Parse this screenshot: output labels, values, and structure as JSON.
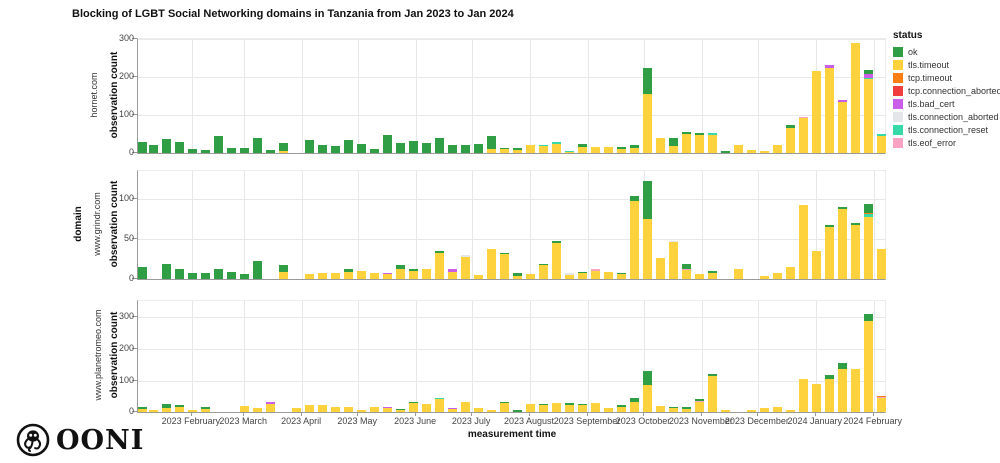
{
  "title": "Blocking of LGBT Social Networking domains in Tanzania from Jan 2023 to Jan 2024",
  "logo": {
    "text": "OONI"
  },
  "axes": {
    "y_label": "observation count",
    "x_label": "measurement time",
    "facet_label": "domain"
  },
  "legend": {
    "title": "status",
    "items": [
      {
        "key": "ok",
        "label": "ok",
        "color": "#2f9e44"
      },
      {
        "key": "tt",
        "label": "tls.timeout",
        "color": "#fdd23c"
      },
      {
        "key": "tcpt",
        "label": "tcp.timeout",
        "color": "#fd7e14"
      },
      {
        "key": "tca",
        "label": "tcp.connection_aborted",
        "color": "#f03e3e"
      },
      {
        "key": "bc",
        "label": "tls.bad_cert",
        "color": "#cc5de8"
      },
      {
        "key": "tlsca",
        "label": "tls.connection_aborted",
        "color": "#e4e7ea"
      },
      {
        "key": "cr",
        "label": "tls.connection_reset",
        "color": "#38d9a9"
      },
      {
        "key": "eof",
        "label": "tls.eof_error",
        "color": "#faa2c1"
      }
    ]
  },
  "x_axis": {
    "label": "measurement time",
    "unit": "weekly bins, week index 0 = 2023-01-01",
    "ticks": [
      "2023 February",
      "2023 March",
      "2023 April",
      "2023 May",
      "2023 June",
      "2023 July",
      "2023 August",
      "2023 September",
      "2023 October",
      "2023 November",
      "2023 December",
      "2024 January",
      "2024 February"
    ]
  },
  "segment_keys": {
    "ok": "ok",
    "tt": "tls.timeout",
    "tcpt": "tcp.timeout",
    "tca": "tcp.connection_aborted",
    "bc": "tls.bad_cert",
    "tlsca": "tls.connection_aborted",
    "cr": "tls.connection_reset",
    "eof": "tls.eof_error"
  },
  "chart_data": [
    {
      "type": "bar",
      "stacked": true,
      "domain": "hornet.com",
      "ylabel": "observation count",
      "ylim": [
        0,
        300
      ],
      "yticks": [
        0,
        100,
        200,
        300
      ],
      "bars": [
        [
          0,
          {
            "ok": 28
          }
        ],
        [
          1,
          {
            "ok": 22
          }
        ],
        [
          2,
          {
            "ok": 37
          }
        ],
        [
          3,
          {
            "ok": 28
          }
        ],
        [
          4,
          {
            "ok": 11
          }
        ],
        [
          5,
          {
            "ok": 8
          }
        ],
        [
          6,
          {
            "ok": 45
          }
        ],
        [
          7,
          {
            "ok": 12
          }
        ],
        [
          8,
          {
            "ok": 14
          }
        ],
        [
          9,
          {
            "ok": 39
          }
        ],
        [
          10,
          {
            "ok": 9
          }
        ],
        [
          11,
          {
            "tt": 5,
            "ok": 22
          }
        ],
        [
          13,
          {
            "ok": 35
          }
        ],
        [
          14,
          {
            "ok": 22
          }
        ],
        [
          15,
          {
            "ok": 18
          }
        ],
        [
          16,
          {
            "ok": 35
          }
        ],
        [
          17,
          {
            "ok": 25
          }
        ],
        [
          18,
          {
            "ok": 11
          }
        ],
        [
          19,
          {
            "ok": 48
          }
        ],
        [
          20,
          {
            "ok": 26
          }
        ],
        [
          21,
          {
            "ok": 31
          }
        ],
        [
          22,
          {
            "ok": 26
          }
        ],
        [
          23,
          {
            "ok": 39
          }
        ],
        [
          24,
          {
            "ok": 22
          }
        ],
        [
          25,
          {
            "ok": 22
          }
        ],
        [
          26,
          {
            "ok": 25
          }
        ],
        [
          27,
          {
            "tt": 10,
            "ok": 34
          }
        ],
        [
          28,
          {
            "tt": 10,
            "ok": 4
          }
        ],
        [
          29,
          {
            "tt": 8,
            "ok": 5
          }
        ],
        [
          30,
          {
            "tt": 22
          }
        ],
        [
          31,
          {
            "tt": 18,
            "cr": 3
          }
        ],
        [
          32,
          {
            "tt": 25,
            "cr": 4
          }
        ],
        [
          33,
          {
            "tt": 4,
            "cr": 2
          }
        ],
        [
          34,
          {
            "tt": 15,
            "ok": 8
          }
        ],
        [
          35,
          {
            "tt": 15
          }
        ],
        [
          36,
          {
            "tt": 15
          }
        ],
        [
          37,
          {
            "tt": 10,
            "ok": 6
          }
        ],
        [
          38,
          {
            "tt": 12,
            "ok": 10
          }
        ],
        [
          39,
          {
            "tt": 155,
            "ok": 70
          }
        ],
        [
          40,
          {
            "tt": 40
          }
        ],
        [
          41,
          {
            "tt": 18,
            "ok": 22
          }
        ],
        [
          42,
          {
            "tt": 50,
            "ok": 5
          }
        ],
        [
          43,
          {
            "tt": 48,
            "ok": 4
          }
        ],
        [
          44,
          {
            "tt": 48,
            "cr": 5
          }
        ],
        [
          45,
          {
            "ok": 5
          }
        ],
        [
          46,
          {
            "tt": 22
          }
        ],
        [
          47,
          {
            "tt": 8
          }
        ],
        [
          48,
          {
            "tt": 6
          }
        ],
        [
          49,
          {
            "tt": 20
          }
        ],
        [
          50,
          {
            "tt": 65,
            "ok": 8
          }
        ],
        [
          51,
          {
            "tt": 92,
            "eof": 4
          }
        ],
        [
          52,
          {
            "tt": 215
          }
        ],
        [
          53,
          {
            "tt": 225,
            "bc": 6
          }
        ],
        [
          54,
          {
            "tt": 135,
            "bc": 4
          }
        ],
        [
          55,
          {
            "tt": 290
          }
        ],
        [
          56,
          {
            "tt": 195,
            "cr": 3,
            "bc": 10,
            "ok": 10
          }
        ],
        [
          57,
          {
            "tt": 45,
            "cr": 5
          }
        ]
      ]
    },
    {
      "type": "bar",
      "stacked": true,
      "domain": "www.grindr.com",
      "ylabel": "observation count",
      "ylim": [
        0,
        135
      ],
      "yticks": [
        0,
        50,
        100
      ],
      "bars": [
        [
          0,
          {
            "ok": 15
          }
        ],
        [
          2,
          {
            "ok": 19
          }
        ],
        [
          3,
          {
            "ok": 13
          }
        ],
        [
          4,
          {
            "ok": 8
          }
        ],
        [
          5,
          {
            "ok": 8
          }
        ],
        [
          6,
          {
            "ok": 12
          }
        ],
        [
          7,
          {
            "ok": 9
          }
        ],
        [
          8,
          {
            "ok": 6
          }
        ],
        [
          9,
          {
            "ok": 22
          }
        ],
        [
          11,
          {
            "tt": 9,
            "ok": 9
          }
        ],
        [
          13,
          {
            "tt": 6
          }
        ],
        [
          14,
          {
            "tt": 8
          }
        ],
        [
          15,
          {
            "tt": 8
          }
        ],
        [
          16,
          {
            "tt": 9,
            "ok": 3
          }
        ],
        [
          17,
          {
            "tt": 10
          }
        ],
        [
          18,
          {
            "tt": 8
          }
        ],
        [
          19,
          {
            "tt": 6,
            "bc": 2
          }
        ],
        [
          20,
          {
            "tt": 12,
            "ok": 5
          }
        ],
        [
          21,
          {
            "tt": 10,
            "ok": 2
          }
        ],
        [
          22,
          {
            "tt": 13
          }
        ],
        [
          23,
          {
            "tt": 32,
            "ok": 3
          }
        ],
        [
          24,
          {
            "tt": 9,
            "bc": 3
          }
        ],
        [
          25,
          {
            "tt": 28,
            "tlsca": 2
          }
        ],
        [
          26,
          {
            "tt": 5
          }
        ],
        [
          27,
          {
            "tt": 38
          }
        ],
        [
          28,
          {
            "tt": 31,
            "ok": 2
          }
        ],
        [
          29,
          {
            "tt": 4,
            "ok": 4
          }
        ],
        [
          30,
          {
            "tt": 6
          }
        ],
        [
          31,
          {
            "tt": 17,
            "ok": 2
          }
        ],
        [
          32,
          {
            "tt": 45,
            "ok": 3
          }
        ],
        [
          33,
          {
            "tt": 5,
            "tlsca": 2
          }
        ],
        [
          34,
          {
            "tt": 7,
            "ok": 2
          }
        ],
        [
          35,
          {
            "tt": 10,
            "eof": 2
          }
        ],
        [
          36,
          {
            "tt": 9
          }
        ],
        [
          37,
          {
            "tt": 6,
            "ok": 2
          }
        ],
        [
          38,
          {
            "tt": 98,
            "ok": 6
          }
        ],
        [
          39,
          {
            "tt": 75,
            "ok": 47
          }
        ],
        [
          40,
          {
            "tt": 26
          }
        ],
        [
          41,
          {
            "tt": 46,
            "tlsca": 2
          }
        ],
        [
          42,
          {
            "tt": 11,
            "eof": 2,
            "ok": 6
          }
        ],
        [
          43,
          {
            "tt": 6
          }
        ],
        [
          44,
          {
            "tt": 8,
            "ok": 2
          }
        ],
        [
          46,
          {
            "tt": 13
          }
        ],
        [
          48,
          {
            "tt": 4
          }
        ],
        [
          49,
          {
            "tt": 7
          }
        ],
        [
          50,
          {
            "tt": 15
          }
        ],
        [
          51,
          {
            "tt": 92
          }
        ],
        [
          52,
          {
            "tt": 35
          }
        ],
        [
          53,
          {
            "tt": 65,
            "ok": 3
          }
        ],
        [
          54,
          {
            "tt": 87,
            "ok": 3
          }
        ],
        [
          55,
          {
            "tt": 68,
            "ok": 2
          }
        ],
        [
          56,
          {
            "tt": 78,
            "cr": 3,
            "tcpt": 2,
            "ok": 11
          }
        ],
        [
          57,
          {
            "tt": 38
          }
        ]
      ]
    },
    {
      "type": "bar",
      "stacked": true,
      "domain": "www.planetromeo.com",
      "ylabel": "observation count",
      "ylim": [
        0,
        352
      ],
      "yticks": [
        0,
        100,
        200,
        300
      ],
      "bars": [
        [
          0,
          {
            "tt": 9,
            "ok": 6
          }
        ],
        [
          1,
          {
            "tt": 8
          }
        ],
        [
          2,
          {
            "tt": 13,
            "ok": 11
          }
        ],
        [
          3,
          {
            "tt": 15,
            "ok": 9
          }
        ],
        [
          4,
          {
            "tt": 8
          }
        ],
        [
          5,
          {
            "tt": 11,
            "ok": 5
          }
        ],
        [
          8,
          {
            "tt": 19
          }
        ],
        [
          9,
          {
            "tt": 13
          }
        ],
        [
          10,
          {
            "tt": 27,
            "bc": 5
          }
        ],
        [
          12,
          {
            "tt": 13
          }
        ],
        [
          13,
          {
            "tt": 21
          }
        ],
        [
          14,
          {
            "tt": 21
          }
        ],
        [
          15,
          {
            "tt": 16
          }
        ],
        [
          16,
          {
            "tt": 16
          }
        ],
        [
          17,
          {
            "tt": 8
          }
        ],
        [
          18,
          {
            "tt": 16
          }
        ],
        [
          19,
          {
            "tt": 13,
            "bc": 4
          }
        ],
        [
          20,
          {
            "tt": 6,
            "ok": 5
          }
        ],
        [
          21,
          {
            "tt": 28,
            "ok": 5
          }
        ],
        [
          22,
          {
            "tt": 27
          }
        ],
        [
          23,
          {
            "tt": 40,
            "cr": 4
          }
        ],
        [
          24,
          {
            "tt": 9,
            "bc": 5
          }
        ],
        [
          25,
          {
            "tt": 32
          }
        ],
        [
          26,
          {
            "tt": 13
          }
        ],
        [
          27,
          {
            "tt": 6
          }
        ],
        [
          28,
          {
            "tt": 28,
            "ok": 5
          }
        ],
        [
          29,
          {
            "ok": 6
          }
        ],
        [
          30,
          {
            "tt": 26
          }
        ],
        [
          31,
          {
            "tt": 21,
            "ok": 3
          }
        ],
        [
          32,
          {
            "tt": 29
          }
        ],
        [
          33,
          {
            "tt": 23,
            "ok": 6
          }
        ],
        [
          34,
          {
            "tt": 21,
            "ok": 5
          }
        ],
        [
          35,
          {
            "tt": 29
          }
        ],
        [
          36,
          {
            "tt": 13
          }
        ],
        [
          37,
          {
            "tt": 16,
            "ok": 6
          }
        ],
        [
          38,
          {
            "tt": 32,
            "ok": 13
          }
        ],
        [
          39,
          {
            "tt": 87,
            "ok": 42
          }
        ],
        [
          40,
          {
            "tt": 19
          }
        ],
        [
          41,
          {
            "tt": 13,
            "ok": 3
          }
        ],
        [
          42,
          {
            "tt": 10,
            "ok": 7
          }
        ],
        [
          43,
          {
            "tt": 31,
            "eof": 3,
            "ok": 9
          }
        ],
        [
          44,
          {
            "tt": 113,
            "ok": 8
          }
        ],
        [
          45,
          {
            "tt": 8
          }
        ],
        [
          47,
          {
            "tt": 8
          }
        ],
        [
          48,
          {
            "tt": 13
          }
        ],
        [
          49,
          {
            "tt": 15
          }
        ],
        [
          50,
          {
            "tt": 6
          }
        ],
        [
          51,
          {
            "tt": 104
          }
        ],
        [
          52,
          {
            "tt": 88
          }
        ],
        [
          53,
          {
            "tt": 105,
            "ok": 12
          }
        ],
        [
          54,
          {
            "tt": 135,
            "ok": 19
          }
        ],
        [
          55,
          {
            "tt": 135
          }
        ],
        [
          56,
          {
            "tt": 290,
            "ok": 20
          }
        ],
        [
          57,
          {
            "tt": 44,
            "tcpt": 3,
            "eof": 3
          }
        ]
      ]
    }
  ]
}
